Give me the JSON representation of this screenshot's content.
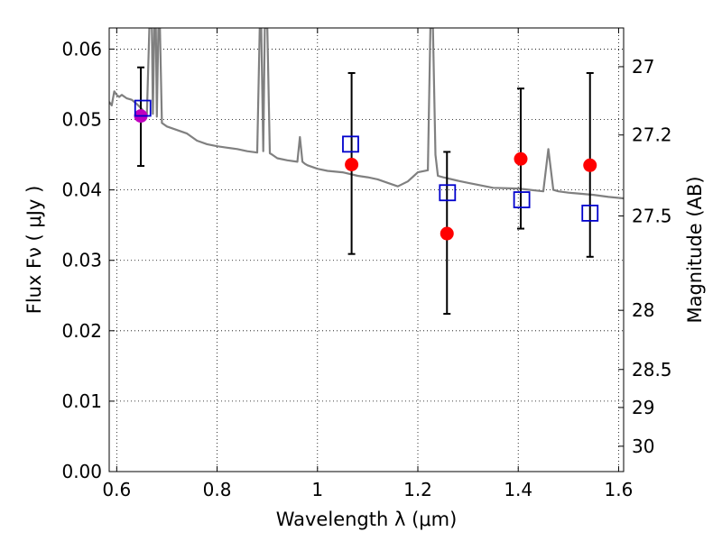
{
  "chart_data": {
    "type": "scatter",
    "xlabel": "Wavelength  λ (μm)",
    "ylabel": "Flux  Fν  ( μJy )",
    "y2label": "Magnitude (AB)",
    "xlim": [
      0.585,
      1.61
    ],
    "ylim": [
      0.0,
      0.063
    ],
    "grid": true,
    "x_ticks": [
      0.6,
      0.8,
      1.0,
      1.2,
      1.4,
      1.6
    ],
    "x_tick_labels": [
      "0.6",
      "0.8",
      "1",
      "1.2",
      "1.4",
      "1.6"
    ],
    "y_ticks": [
      0.0,
      0.01,
      0.02,
      0.03,
      0.04,
      0.05,
      0.06
    ],
    "y_tick_labels": [
      "0.00",
      "0.01",
      "0.02",
      "0.03",
      "0.04",
      "0.05",
      "0.06"
    ],
    "y2_ticks": [
      {
        "label": "27",
        "flux": 0.0575
      },
      {
        "label": "27.2",
        "flux": 0.0478
      },
      {
        "label": "27.5",
        "flux": 0.0363
      },
      {
        "label": "28",
        "flux": 0.0229
      },
      {
        "label": "28.5",
        "flux": 0.0145
      },
      {
        "label": "29",
        "flux": 0.0091
      },
      {
        "label": "30",
        "flux": 0.0036
      }
    ],
    "colors": {
      "observed": "#ff0000",
      "observed_first": "#bf00bf",
      "model": "#0000cc",
      "spectrum": "#808080",
      "errorbar": "#000000",
      "grid": "#000000"
    },
    "series": [
      {
        "marker": "circle",
        "x": [
          0.648,
          1.068,
          1.258,
          1.405,
          1.543
        ],
        "y": [
          0.0505,
          0.0436,
          0.0338,
          0.0444,
          0.0435
        ],
        "yerr_low": [
          0.0434,
          0.0309,
          0.0224,
          0.0345,
          0.0305
        ],
        "yerr_high": [
          0.0574,
          0.0566,
          0.0454,
          0.0544,
          0.0566
        ]
      },
      {
        "marker": "open-square",
        "x": [
          0.652,
          1.066,
          1.259,
          1.407,
          1.543
        ],
        "y": [
          0.0516,
          0.0465,
          0.0396,
          0.0386,
          0.0367
        ]
      },
      {
        "marker": "line",
        "x": [
          0.585,
          0.59,
          0.595,
          0.6,
          0.605,
          0.61,
          0.62,
          0.63,
          0.64,
          0.65,
          0.66,
          0.665,
          0.67,
          0.672,
          0.675,
          0.678,
          0.68,
          0.683,
          0.686,
          0.69,
          0.7,
          0.72,
          0.74,
          0.76,
          0.78,
          0.8,
          0.82,
          0.84,
          0.86,
          0.88,
          0.885,
          0.888,
          0.892,
          0.895,
          0.9,
          0.905,
          0.91,
          0.92,
          0.94,
          0.96,
          0.965,
          0.97,
          0.975,
          0.98,
          1.0,
          1.02,
          1.05,
          1.08,
          1.1,
          1.12,
          1.14,
          1.16,
          1.18,
          1.2,
          1.22,
          1.225,
          1.23,
          1.235,
          1.24,
          1.25,
          1.28,
          1.3,
          1.35,
          1.4,
          1.45,
          1.46,
          1.47,
          1.48,
          1.5,
          1.55,
          1.58,
          1.61
        ],
        "y": [
          0.0525,
          0.052,
          0.054,
          0.0535,
          0.0532,
          0.0535,
          0.053,
          0.0528,
          0.0522,
          0.0515,
          0.0505,
          0.063,
          0.063,
          0.0508,
          0.063,
          0.063,
          0.0504,
          0.063,
          0.063,
          0.0495,
          0.049,
          0.0485,
          0.048,
          0.047,
          0.0465,
          0.0462,
          0.046,
          0.0458,
          0.0455,
          0.0453,
          0.063,
          0.063,
          0.0455,
          0.063,
          0.063,
          0.0452,
          0.045,
          0.0445,
          0.0442,
          0.044,
          0.0475,
          0.044,
          0.0437,
          0.0435,
          0.043,
          0.0427,
          0.0425,
          0.042,
          0.0418,
          0.0415,
          0.041,
          0.0405,
          0.0412,
          0.0425,
          0.0428,
          0.063,
          0.063,
          0.045,
          0.042,
          0.0418,
          0.0413,
          0.041,
          0.0403,
          0.0402,
          0.0398,
          0.0458,
          0.04,
          0.0398,
          0.0396,
          0.0393,
          0.039,
          0.0388
        ]
      }
    ]
  }
}
